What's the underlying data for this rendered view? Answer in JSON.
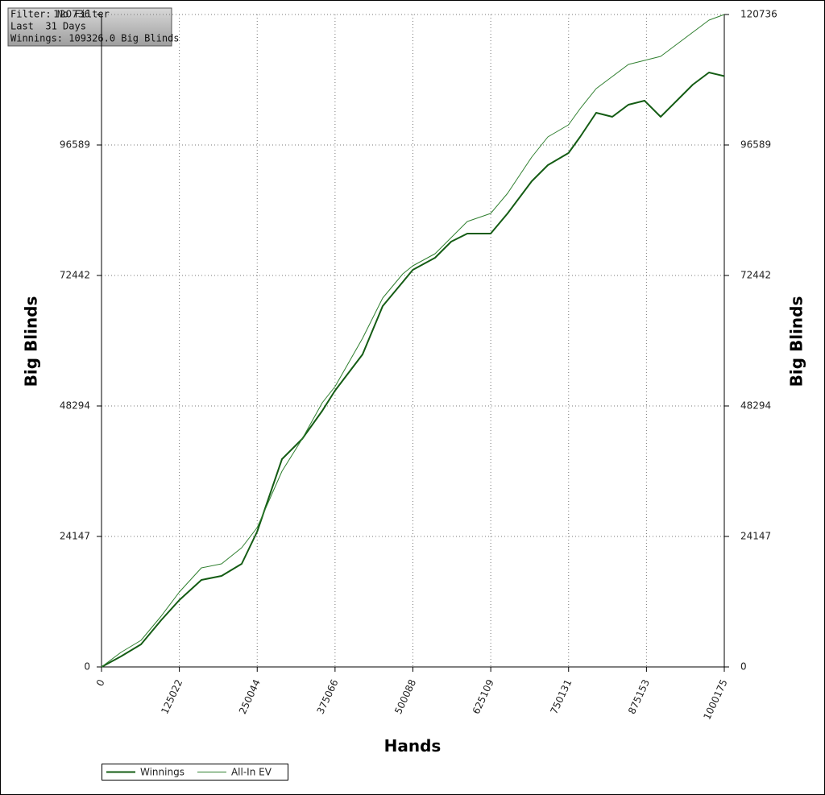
{
  "chart_data": {
    "type": "line",
    "annotations": [
      "Filter: No Filter",
      "Last  31 Days",
      "Winnings: 109326.0 Big Blinds"
    ],
    "xlabel": "Hands",
    "ylabel": "Big Blinds",
    "y2label": "Big Blinds",
    "x": [
      0,
      31000,
      63400,
      95800,
      125000,
      160400,
      192800,
      225100,
      250000,
      289800,
      322200,
      354500,
      375000,
      419200,
      451600,
      483900,
      500000,
      535700,
      561600,
      587400,
      625000,
      652100,
      690900,
      716800,
      750000,
      768600,
      794500,
      820300,
      846200,
      872100,
      898000,
      923800,
      949700,
      975600,
      1000175
    ],
    "series": [
      {
        "name": "Winnings",
        "color": "#145c14",
        "values": [
          0,
          1940,
          4170,
          8650,
          12370,
          16100,
          16840,
          19080,
          25040,
          38460,
          42180,
          47400,
          51130,
          57840,
          66780,
          71250,
          73490,
          75720,
          78700,
          80200,
          80200,
          83920,
          89880,
          92860,
          95100,
          98080,
          102550,
          101810,
          104040,
          104790,
          101810,
          104790,
          107770,
          110010,
          109326
        ]
      },
      {
        "name": "All-In EV",
        "color": "#2f7f2f",
        "values": [
          0,
          2680,
          4920,
          9390,
          13860,
          18330,
          19080,
          22060,
          25790,
          36220,
          42180,
          48890,
          51870,
          60820,
          68270,
          72740,
          74230,
          76470,
          79450,
          82430,
          83920,
          87650,
          94350,
          98080,
          100320,
          103300,
          107020,
          109260,
          111500,
          112240,
          112990,
          115220,
          117460,
          119700,
          120736
        ]
      }
    ],
    "xlim": [
      0,
      1000175
    ],
    "xticks": [
      0,
      125022,
      250044,
      375066,
      500088,
      625109,
      750131,
      875153,
      1000175
    ],
    "ylim": [
      0,
      120736
    ],
    "yticks": [
      0,
      24147,
      48294,
      72442,
      96589,
      120736
    ],
    "y2lim": [
      0,
      120736
    ],
    "y2ticks": [
      0,
      24147,
      48294,
      72442,
      96589,
      120736
    ],
    "grid": true,
    "legend": "bottom-left"
  }
}
